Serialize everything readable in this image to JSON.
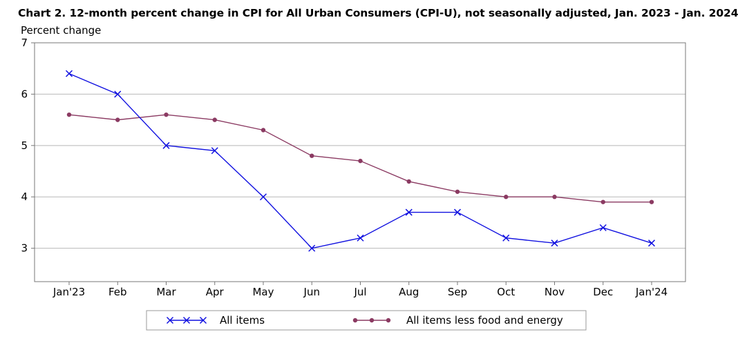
{
  "chart_data": {
    "type": "line",
    "title": "Chart 2. 12-month percent change in CPI for All Urban Consumers (CPI-U), not seasonally adjusted, Jan. 2023 - Jan. 2024",
    "ylabel": "Percent change",
    "xlabel": "",
    "categories": [
      "Jan'23",
      "Feb",
      "Mar",
      "Apr",
      "May",
      "Jun",
      "Jul",
      "Aug",
      "Sep",
      "Oct",
      "Nov",
      "Dec",
      "Jan'24"
    ],
    "y_ticks": [
      3,
      4,
      5,
      6,
      7
    ],
    "ylim": [
      2.35,
      7
    ],
    "grid": true,
    "legend_position": "bottom",
    "series": [
      {
        "name": "All items",
        "marker": "x",
        "color": "#1010e0",
        "values": [
          6.4,
          6.0,
          5.0,
          4.9,
          4.0,
          3.0,
          3.2,
          3.7,
          3.7,
          3.2,
          3.1,
          3.4,
          3.1
        ]
      },
      {
        "name": "All items less food and energy",
        "marker": "circle",
        "color": "#8b3a62",
        "values": [
          5.6,
          5.5,
          5.6,
          5.5,
          5.3,
          4.8,
          4.7,
          4.3,
          4.1,
          4.0,
          4.0,
          3.9,
          3.9
        ]
      }
    ]
  }
}
